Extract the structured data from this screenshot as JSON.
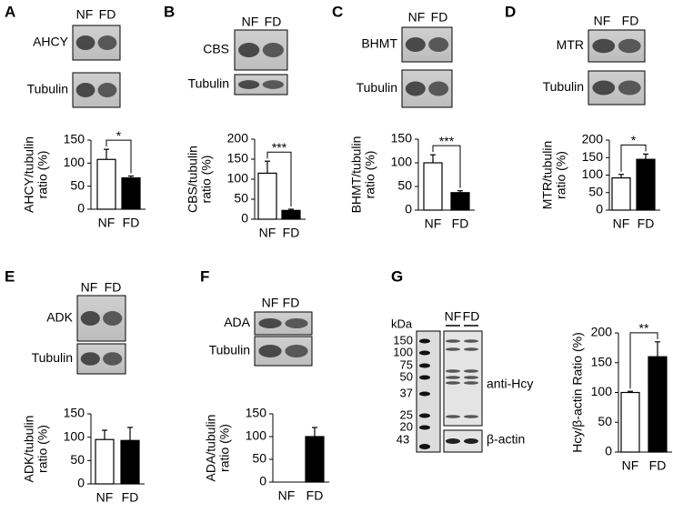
{
  "panels": [
    {
      "letter": "A",
      "lanes": [
        "NF",
        "FD"
      ],
      "blots": [
        "AHCY",
        "Tubulin"
      ]
    },
    {
      "letter": "B",
      "lanes": [
        "NF",
        "FD"
      ],
      "blots": [
        "CBS",
        "Tubulin"
      ]
    },
    {
      "letter": "C",
      "lanes": [
        "NF",
        "FD"
      ],
      "blots": [
        "BHMT",
        "Tubulin"
      ]
    },
    {
      "letter": "D",
      "lanes": [
        "NF",
        "FD"
      ],
      "blots": [
        "MTR",
        "Tubulin"
      ]
    },
    {
      "letter": "E",
      "lanes": [
        "NF",
        "FD"
      ],
      "blots": [
        "ADK",
        "Tubulin"
      ]
    },
    {
      "letter": "F",
      "lanes": [
        "NF",
        "FD"
      ],
      "blots": [
        "ADA",
        "Tubulin"
      ]
    },
    {
      "letter": "G",
      "lanes": [
        "NF",
        "FD"
      ],
      "blots": [
        "anti-Hcy",
        "β-actin"
      ],
      "unit": "kDa",
      "markers": [
        150,
        100,
        75,
        50,
        37,
        25,
        20
      ],
      "actin_marker": 43
    }
  ],
  "chart_data": [
    {
      "type": "bar",
      "ylabel": [
        "AHCY/tubulin",
        "ratio (%)"
      ],
      "categories": [
        "NF",
        "FD"
      ],
      "values": [
        108,
        68
      ],
      "errors": [
        22,
        4
      ],
      "colors": [
        "#ffffff",
        "#000000"
      ],
      "ylim": [
        0,
        150
      ],
      "yticks": [
        0,
        50,
        100,
        150
      ],
      "significance": "*"
    },
    {
      "type": "bar",
      "ylabel": [
        "CBS/tubulin",
        "ratio (%)"
      ],
      "categories": [
        "NF",
        "FD"
      ],
      "values": [
        115,
        22
      ],
      "errors": [
        30,
        3
      ],
      "colors": [
        "#ffffff",
        "#000000"
      ],
      "ylim": [
        0,
        200
      ],
      "yticks": [
        0,
        50,
        100,
        150,
        200
      ],
      "significance": "***"
    },
    {
      "type": "bar",
      "ylabel": [
        "BHMT/tubulin",
        "ratio (%)"
      ],
      "categories": [
        "NF",
        "FD"
      ],
      "values": [
        100,
        37
      ],
      "errors": [
        17,
        4
      ],
      "colors": [
        "#ffffff",
        "#000000"
      ],
      "ylim": [
        0,
        150
      ],
      "yticks": [
        0,
        50,
        100,
        150
      ],
      "significance": "***"
    },
    {
      "type": "bar",
      "ylabel": [
        "MTR/tubulin",
        "ratio (%)"
      ],
      "categories": [
        "NF",
        "FD"
      ],
      "values": [
        92,
        145
      ],
      "errors": [
        10,
        15
      ],
      "colors": [
        "#ffffff",
        "#000000"
      ],
      "ylim": [
        0,
        200
      ],
      "yticks": [
        0,
        50,
        100,
        150,
        200
      ],
      "significance": "*"
    },
    {
      "type": "bar",
      "ylabel": [
        "ADK/tubulin",
        "ratio (%)"
      ],
      "categories": [
        "NF",
        "FD"
      ],
      "values": [
        95,
        93
      ],
      "errors": [
        20,
        28
      ],
      "colors": [
        "#ffffff",
        "#000000"
      ],
      "ylim": [
        0,
        150
      ],
      "yticks": [
        0,
        50,
        100,
        150
      ]
    },
    {
      "type": "bar",
      "ylabel": [
        "ADA/tubulin",
        "ratio (%)"
      ],
      "categories": [
        "NF",
        "FD"
      ],
      "values": [
        0,
        100
      ],
      "errors": [
        null,
        20
      ],
      "colors": [
        "#ffffff",
        "#000000"
      ],
      "ylim": [
        0,
        150
      ],
      "yticks": [
        0,
        50,
        100,
        150
      ]
    },
    {
      "type": "bar",
      "ylabel": [
        "Hcy/β-actin Ratio (%)"
      ],
      "categories": [
        "NF",
        "FD"
      ],
      "values": [
        100,
        160
      ],
      "errors": [
        2,
        25
      ],
      "colors": [
        "#ffffff",
        "#000000"
      ],
      "ylim": [
        0,
        200
      ],
      "yticks": [
        0,
        50,
        100,
        150,
        200
      ],
      "significance": "**"
    }
  ]
}
